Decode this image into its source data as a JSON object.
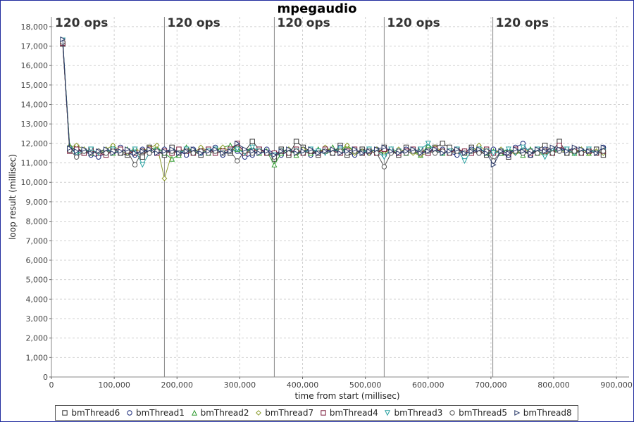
{
  "chart_data": {
    "type": "line",
    "title": "mpegaudio",
    "xlabel": "time from start (millisec)",
    "ylabel": "loop result (millisec)",
    "xlim": [
      0,
      920000
    ],
    "ylim": [
      0,
      18500
    ],
    "x_ticks": [
      0,
      100000,
      200000,
      300000,
      400000,
      500000,
      600000,
      700000,
      800000,
      900000
    ],
    "x_tick_labels": [
      "0",
      "100,000",
      "200,000",
      "300,000",
      "400,000",
      "500,000",
      "600,000",
      "700,000",
      "800,000",
      "900,000"
    ],
    "y_ticks": [
      0,
      1000,
      2000,
      3000,
      4000,
      5000,
      6000,
      7000,
      8000,
      9000,
      10000,
      11000,
      12000,
      13000,
      14000,
      15000,
      16000,
      17000,
      18000
    ],
    "y_tick_labels": [
      "0",
      "1,000",
      "2,000",
      "3,000",
      "4,000",
      "5,000",
      "6,000",
      "7,000",
      "8,000",
      "9,000",
      "10,000",
      "11,000",
      "12,000",
      "13,000",
      "14,000",
      "15,000",
      "16,000",
      "17,000",
      "18,000"
    ],
    "grid": true,
    "legend_position": "bottom",
    "phase_markers": [
      {
        "x": 180000,
        "label": "120 ops"
      },
      {
        "x": 355000,
        "label": "120 ops"
      },
      {
        "x": 530000,
        "label": "120 ops"
      },
      {
        "x": 703000,
        "label": "120 ops"
      }
    ],
    "first_phase_label": "120 ops",
    "x": [
      18000,
      29000,
      40000,
      52000,
      63000,
      75000,
      87000,
      98000,
      110000,
      121000,
      133000,
      145000,
      156000,
      168000,
      180000,
      192000,
      203000,
      215000,
      226000,
      238000,
      250000,
      261000,
      273000,
      285000,
      296000,
      308000,
      320000,
      331000,
      343000,
      355000,
      366000,
      378000,
      390000,
      401000,
      413000,
      425000,
      436000,
      448000,
      460000,
      471000,
      483000,
      495000,
      506000,
      518000,
      530000,
      541000,
      553000,
      565000,
      576000,
      588000,
      600000,
      611000,
      623000,
      634000,
      646000,
      658000,
      669000,
      681000,
      693000,
      704000,
      716000,
      728000,
      739000,
      751000,
      763000,
      774000,
      786000,
      798000,
      809000,
      821000,
      833000,
      844000,
      856000,
      868000,
      879000
    ],
    "series": [
      {
        "name": "bmThread6",
        "color": "#333333",
        "marker": "square",
        "values": [
          17100,
          11700,
          11800,
          11500,
          11700,
          11400,
          11600,
          11700,
          11500,
          11400,
          11600,
          11300,
          11800,
          11600,
          11400,
          11800,
          11500,
          11700,
          11600,
          11400,
          11700,
          11600,
          11500,
          11500,
          11900,
          11600,
          12100,
          11700,
          11600,
          11200,
          11700,
          11400,
          12100,
          11800,
          11600,
          11400,
          11700,
          11500,
          11900,
          11400,
          11500,
          11700,
          11600,
          11500,
          11800,
          11600,
          11400,
          11800,
          11600,
          11700,
          11500,
          11800,
          12000,
          11800,
          11600,
          11500,
          11800,
          11600,
          11400,
          11600,
          11500,
          11300,
          11700,
          11600,
          11400,
          11700,
          11900,
          11600,
          12100,
          11500,
          11600,
          11500,
          11600,
          11700,
          11400
        ]
      },
      {
        "name": "bmThread1",
        "color": "#1a2a7a",
        "marker": "circle",
        "values": [
          17200,
          11800,
          11500,
          11600,
          11400,
          11300,
          11500,
          11600,
          11800,
          11500,
          11400,
          11700,
          11500,
          11600,
          11700,
          11500,
          11600,
          11400,
          11700,
          11500,
          11600,
          11800,
          11400,
          11700,
          11600,
          11300,
          11400,
          11600,
          11700,
          11500,
          11400,
          11600,
          11500,
          11700,
          11400,
          11600,
          11700,
          11500,
          11800,
          11600,
          11400,
          11600,
          11500,
          11700,
          11400,
          11600,
          11500,
          11700,
          11600,
          11500,
          11800,
          11600,
          11700,
          11500,
          11400,
          11600,
          11700,
          11500,
          11600,
          11700,
          11500,
          11400,
          11800,
          12000,
          11400,
          11600,
          11700,
          11500,
          11800,
          11600,
          11700,
          11500,
          11600,
          11500,
          11800
        ]
      },
      {
        "name": "bmThread2",
        "color": "#2e9a2e",
        "marker": "triangle-up",
        "values": [
          17250,
          11900,
          11600,
          11700,
          11500,
          11600,
          11700,
          11500,
          11600,
          11700,
          11500,
          11600,
          11700,
          11800,
          11500,
          11200,
          11400,
          11800,
          11600,
          11700,
          11500,
          11600,
          11800,
          11900,
          11700,
          11600,
          11800,
          11500,
          11600,
          10900,
          11500,
          11700,
          11400,
          11600,
          11500,
          11700,
          11600,
          11800,
          11500,
          11900,
          11600,
          11500,
          11700,
          11600,
          11500,
          11700,
          11600,
          11500,
          11600,
          11400,
          11900,
          11700,
          11500,
          11600,
          11700,
          11500,
          11600,
          11700,
          11500,
          11600,
          11500,
          11700,
          11600,
          11400,
          11700,
          11500,
          11600,
          11500,
          11700,
          11600,
          11500,
          11700,
          11500,
          11600,
          11700
        ]
      },
      {
        "name": "bmThread7",
        "color": "#8a9a2a",
        "marker": "diamond",
        "values": [
          17200,
          11800,
          11900,
          11700,
          11600,
          11500,
          11700,
          11900,
          11600,
          11500,
          11700,
          11600,
          11800,
          11900,
          10200,
          11500,
          11600,
          11700,
          11500,
          11800,
          11600,
          11700,
          11800,
          11600,
          11800,
          11500,
          11700,
          11600,
          11500,
          11300,
          11600,
          11700,
          11500,
          11700,
          11600,
          11500,
          11800,
          11600,
          11700,
          11900,
          11500,
          11600,
          11500,
          11700,
          11600,
          11500,
          11700,
          11600,
          11500,
          11400,
          11500,
          11800,
          11600,
          11500,
          11700,
          11600,
          11500,
          11900,
          11600,
          11500,
          11700,
          11600,
          11500,
          11700,
          11600,
          11500,
          11400,
          11600,
          11700,
          11500,
          11600,
          11700,
          11500,
          11600,
          11500
        ]
      },
      {
        "name": "bmThread4",
        "color": "#7a1a3a",
        "marker": "square",
        "values": [
          17150,
          11600,
          11700,
          11500,
          11600,
          11500,
          11400,
          11600,
          11700,
          11600,
          11500,
          11600,
          11700,
          11500,
          11600,
          11500,
          11700,
          11600,
          11500,
          11600,
          11700,
          11500,
          11600,
          11700,
          12000,
          11500,
          11600,
          11700,
          11500,
          11500,
          11600,
          11500,
          11700,
          11500,
          11600,
          11500,
          11700,
          11600,
          11500,
          11600,
          11700,
          11500,
          11600,
          11500,
          11700,
          11600,
          11500,
          11600,
          11700,
          11600,
          11500,
          11700,
          11600,
          11500,
          11700,
          11600,
          11500,
          11600,
          11700,
          11500,
          11600,
          11500,
          11700,
          11600,
          11500,
          11700,
          11600,
          11500,
          11900,
          11600,
          11700,
          11500,
          11600,
          11500,
          11600
        ]
      },
      {
        "name": "bmThread3",
        "color": "#2aa0a0",
        "marker": "triangle-down",
        "values": [
          17300,
          11700,
          11500,
          11600,
          11700,
          11500,
          11600,
          11700,
          11500,
          11600,
          11700,
          10900,
          11500,
          11600,
          11500,
          11600,
          11500,
          11700,
          11600,
          11500,
          11600,
          11700,
          11500,
          11600,
          11700,
          11500,
          11800,
          11600,
          11500,
          11400,
          11600,
          11500,
          11600,
          11500,
          11700,
          11600,
          11500,
          11600,
          11700,
          11500,
          11600,
          11500,
          11700,
          11600,
          11300,
          11700,
          11600,
          11500,
          11600,
          11700,
          12000,
          11600,
          11500,
          11600,
          11700,
          11100,
          11600,
          11700,
          11600,
          11500,
          11600,
          11700,
          11500,
          11800,
          11600,
          11700,
          11300,
          11700,
          11600,
          11700,
          11500,
          11600,
          11700,
          11500,
          11600
        ]
      },
      {
        "name": "bmThread5",
        "color": "#555555",
        "marker": "circle",
        "values": [
          17200,
          11650,
          11300,
          11600,
          11500,
          11600,
          11500,
          11600,
          11500,
          11600,
          10900,
          11600,
          11500,
          11600,
          11500,
          11600,
          11500,
          11600,
          11500,
          11600,
          11500,
          11600,
          11500,
          11600,
          11100,
          11600,
          11500,
          11600,
          11500,
          11300,
          11600,
          11500,
          11600,
          11500,
          11600,
          11500,
          11600,
          11500,
          11600,
          11500,
          11600,
          11500,
          11600,
          11500,
          10800,
          11500,
          11600,
          11500,
          11600,
          11500,
          11600,
          11500,
          11600,
          11500,
          11600,
          11500,
          11600,
          11500,
          11600,
          11100,
          11600,
          11500,
          11600,
          11500,
          11600,
          11500,
          11600,
          11500,
          11600,
          11500,
          11600,
          11500,
          11600,
          11500,
          11600
        ]
      },
      {
        "name": "bmThread8",
        "color": "#2a3a6a",
        "marker": "triangle-right",
        "values": [
          17350,
          11750,
          11600,
          11700,
          11500,
          11600,
          11700,
          11500,
          11600,
          11700,
          11500,
          11600,
          11700,
          11500,
          11600,
          11700,
          11500,
          11600,
          11700,
          11500,
          11600,
          11700,
          11500,
          11600,
          12000,
          11700,
          11600,
          11500,
          11600,
          11400,
          11600,
          11700,
          11500,
          11600,
          11700,
          11500,
          11600,
          11700,
          11500,
          11600,
          11700,
          11500,
          11600,
          11700,
          11800,
          11600,
          11500,
          11600,
          11700,
          11500,
          11600,
          11700,
          11500,
          11600,
          11700,
          11500,
          11600,
          11700,
          11500,
          10900,
          11600,
          11500,
          11700,
          11600,
          11500,
          11700,
          11600,
          11800,
          11700,
          11600,
          11800,
          11700,
          11600,
          11500,
          11800
        ]
      }
    ]
  }
}
